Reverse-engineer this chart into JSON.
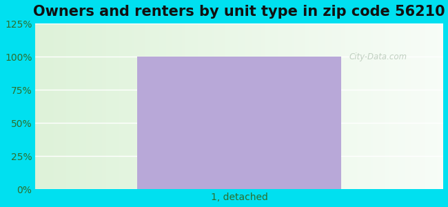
{
  "title": "Owners and renters by unit type in zip code 56210",
  "categories": [
    "1, detached"
  ],
  "values": [
    100
  ],
  "bar_color": "#b8a8d8",
  "bar_width": 0.5,
  "ylim": [
    0,
    125
  ],
  "yticks": [
    0,
    25,
    50,
    75,
    100,
    125
  ],
  "ytick_labels": [
    "0%",
    "25%",
    "50%",
    "75%",
    "100%",
    "125%"
  ],
  "title_fontsize": 15,
  "tick_fontsize": 10,
  "bg_outer_color": "#00e0f0",
  "watermark": "City-Data.com",
  "watermark_color": "#b8c8b8"
}
